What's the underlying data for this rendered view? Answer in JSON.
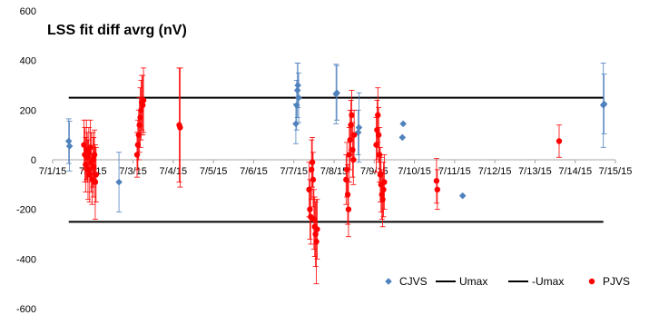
{
  "chart_data": {
    "type": "scatter",
    "title": "LSS fit diff avrg (nV)",
    "ylim": [
      -600,
      600
    ],
    "y_ticks": [
      "600",
      "400",
      "200",
      "0",
      "-200",
      "-400",
      "-600"
    ],
    "x_ticks": [
      "7/1/15",
      "7/2/15",
      "7/3/15",
      "7/4/15",
      "7/5/15",
      "7/6/15",
      "7/7/15",
      "7/8/15",
      "7/9/15",
      "7/10/15",
      "7/11/15",
      "7/12/15",
      "7/13/15",
      "7/14/15",
      "7/15/15"
    ],
    "xlim_days": [
      0,
      14
    ],
    "legend_position": "bottom-right",
    "series": [
      {
        "name": "CJVS",
        "kind": "markers",
        "marker": "diamond",
        "color": "#4f81bd",
        "points": [
          {
            "x": 0.4,
            "y": 75,
            "err": 90
          },
          {
            "x": 0.42,
            "y": 55,
            "err": 100
          },
          {
            "x": 1.65,
            "y": -90,
            "err": 120
          },
          {
            "x": 6.05,
            "y": 145,
            "err": 80
          },
          {
            "x": 6.07,
            "y": 220,
            "err": 100
          },
          {
            "x": 6.09,
            "y": 280,
            "err": 110
          },
          {
            "x": 6.1,
            "y": 300,
            "err": 90
          },
          {
            "x": 6.12,
            "y": 250,
            "err": 100
          },
          {
            "x": 7.05,
            "y": 265,
            "err": 120
          },
          {
            "x": 7.07,
            "y": 270,
            "err": 110
          },
          {
            "x": 7.6,
            "y": 110,
            "err": 90
          },
          {
            "x": 7.62,
            "y": 130,
            "err": 140
          },
          {
            "x": 8.7,
            "y": 90,
            "err": 0
          },
          {
            "x": 8.72,
            "y": 145,
            "err": 0
          },
          {
            "x": 10.2,
            "y": -145,
            "err": 0
          },
          {
            "x": 13.7,
            "y": 220,
            "err": 170
          },
          {
            "x": 13.72,
            "y": 225,
            "err": 120
          }
        ]
      },
      {
        "name": "Umax",
        "kind": "line",
        "color": "#000000",
        "x": [
          0.4,
          13.7
        ],
        "y": [
          250,
          250
        ]
      },
      {
        "name": "-Umax",
        "kind": "line",
        "color": "#000000",
        "x": [
          0.4,
          13.7
        ],
        "y": [
          -250,
          -250
        ]
      },
      {
        "name": "PJVS",
        "kind": "markers",
        "marker": "circle",
        "color": "#ff0000",
        "points": [
          {
            "x": 0.78,
            "y": 60,
            "err": 100
          },
          {
            "x": 0.8,
            "y": 20,
            "err": 110
          },
          {
            "x": 0.82,
            "y": -20,
            "err": 110
          },
          {
            "x": 0.84,
            "y": 40,
            "err": 120
          },
          {
            "x": 0.86,
            "y": 10,
            "err": 100
          },
          {
            "x": 0.88,
            "y": -40,
            "err": 120
          },
          {
            "x": 0.9,
            "y": 30,
            "err": 100
          },
          {
            "x": 0.92,
            "y": -60,
            "err": 110
          },
          {
            "x": 0.94,
            "y": 50,
            "err": 110
          },
          {
            "x": 0.96,
            "y": -10,
            "err": 120
          },
          {
            "x": 0.98,
            "y": -80,
            "err": 100
          },
          {
            "x": 1.0,
            "y": 0,
            "err": 110
          },
          {
            "x": 1.02,
            "y": -30,
            "err": 120
          },
          {
            "x": 1.04,
            "y": 20,
            "err": 100
          },
          {
            "x": 1.06,
            "y": -90,
            "err": 150
          },
          {
            "x": 1.08,
            "y": -60,
            "err": 110
          },
          {
            "x": 2.1,
            "y": 20,
            "err": 90
          },
          {
            "x": 2.12,
            "y": 60,
            "err": 100
          },
          {
            "x": 2.14,
            "y": 100,
            "err": 100
          },
          {
            "x": 2.16,
            "y": 140,
            "err": 110
          },
          {
            "x": 2.18,
            "y": 170,
            "err": 120
          },
          {
            "x": 2.2,
            "y": 200,
            "err": 120
          },
          {
            "x": 2.22,
            "y": 230,
            "err": 110
          },
          {
            "x": 2.24,
            "y": 220,
            "err": 120
          },
          {
            "x": 2.26,
            "y": 240,
            "err": 130
          },
          {
            "x": 3.15,
            "y": 140,
            "err": 230
          },
          {
            "x": 3.17,
            "y": 130,
            "err": 240
          },
          {
            "x": 6.38,
            "y": -120,
            "err": 110
          },
          {
            "x": 6.4,
            "y": -200,
            "err": 120
          },
          {
            "x": 6.42,
            "y": -230,
            "err": 110
          },
          {
            "x": 6.44,
            "y": -40,
            "err": 120
          },
          {
            "x": 6.46,
            "y": -10,
            "err": 100
          },
          {
            "x": 6.48,
            "y": -80,
            "err": 110
          },
          {
            "x": 6.5,
            "y": -240,
            "err": 120
          },
          {
            "x": 6.52,
            "y": -270,
            "err": 120
          },
          {
            "x": 6.54,
            "y": -300,
            "err": 130
          },
          {
            "x": 6.56,
            "y": -330,
            "err": 170
          },
          {
            "x": 6.58,
            "y": -280,
            "err": 120
          },
          {
            "x": 7.3,
            "y": -80,
            "err": 100
          },
          {
            "x": 7.32,
            "y": -40,
            "err": 110
          },
          {
            "x": 7.34,
            "y": -140,
            "err": 120
          },
          {
            "x": 7.36,
            "y": -200,
            "err": 110
          },
          {
            "x": 7.38,
            "y": 20,
            "err": 110
          },
          {
            "x": 7.4,
            "y": 80,
            "err": 120
          },
          {
            "x": 7.42,
            "y": 140,
            "err": 100
          },
          {
            "x": 7.44,
            "y": 180,
            "err": 100
          },
          {
            "x": 7.46,
            "y": 40,
            "err": 110
          },
          {
            "x": 7.48,
            "y": 0,
            "err": 100
          },
          {
            "x": 7.5,
            "y": 100,
            "err": 100
          },
          {
            "x": 8.05,
            "y": 60,
            "err": 110
          },
          {
            "x": 8.07,
            "y": 120,
            "err": 120
          },
          {
            "x": 8.09,
            "y": 180,
            "err": 110
          },
          {
            "x": 8.11,
            "y": 100,
            "err": 110
          },
          {
            "x": 8.13,
            "y": 20,
            "err": 110
          },
          {
            "x": 8.15,
            "y": -60,
            "err": 110
          },
          {
            "x": 8.17,
            "y": -100,
            "err": 110
          },
          {
            "x": 8.19,
            "y": -140,
            "err": 100
          },
          {
            "x": 8.21,
            "y": -160,
            "err": 110
          },
          {
            "x": 8.23,
            "y": -120,
            "err": 110
          },
          {
            "x": 8.25,
            "y": -90,
            "err": 110
          },
          {
            "x": 9.55,
            "y": -85,
            "err": 90
          },
          {
            "x": 9.57,
            "y": -120,
            "err": 80
          }
        ]
      },
      {
        "name": "PJVS",
        "kind": "markers",
        "marker": "circle",
        "color": "#ff0000",
        "legend": false,
        "points": [
          {
            "x": 12.6,
            "y": 75,
            "err": 65
          }
        ]
      }
    ]
  }
}
